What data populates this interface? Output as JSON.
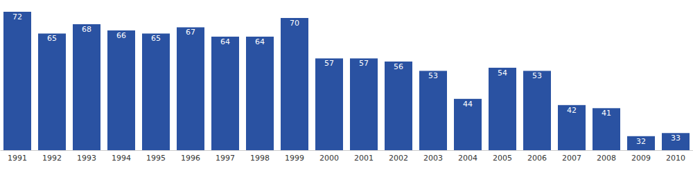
{
  "chart_data": {
    "type": "bar",
    "categories": [
      "1991",
      "1992",
      "1993",
      "1994",
      "1995",
      "1996",
      "1997",
      "1998",
      "1999",
      "2000",
      "2001",
      "2002",
      "2003",
      "2004",
      "2005",
      "2006",
      "2007",
      "2008",
      "2009",
      "2010"
    ],
    "values": [
      72,
      65,
      68,
      66,
      65,
      67,
      64,
      64,
      70,
      57,
      57,
      56,
      53,
      44,
      54,
      53,
      42,
      41,
      32,
      33
    ],
    "color": "#2a52a2",
    "ylim": [
      27.5,
      72
    ],
    "data_labels": true,
    "tick_labels": "x"
  }
}
